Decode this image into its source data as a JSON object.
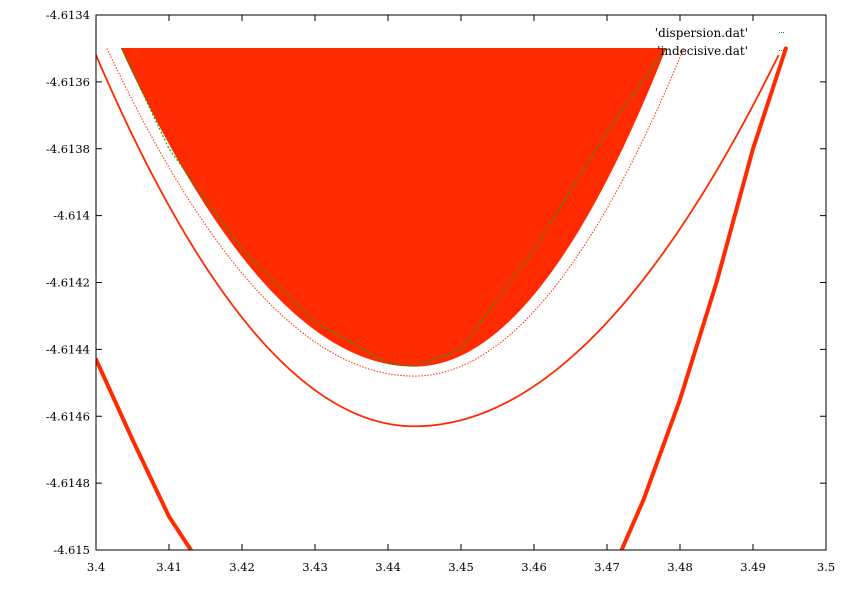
{
  "chart_data": {
    "type": "scatter",
    "title": "",
    "xlabel": "",
    "ylabel": "",
    "xlim": [
      3.4,
      3.5
    ],
    "ylim": [
      -4.615,
      -4.6134
    ],
    "x_ticks": [
      "3.4",
      "3.41",
      "3.42",
      "3.43",
      "3.44",
      "3.45",
      "3.46",
      "3.47",
      "3.48",
      "3.49",
      "3.5"
    ],
    "y_ticks": [
      "-4.6134",
      "-4.6136",
      "-4.6138",
      "-4.614",
      "-4.6142",
      "-4.6144",
      "-4.6146",
      "-4.6148",
      "-4.615"
    ],
    "legend_position": "top-right",
    "grid": false,
    "series": [
      {
        "name": "'dispersion.dat'",
        "color": "#00aa00",
        "style": "dots",
        "description_points": [
          [
            3.4035,
            -4.6135
          ],
          [
            3.41,
            -4.6138
          ],
          [
            3.42,
            -4.6141
          ],
          [
            3.43,
            -4.61432
          ],
          [
            3.44,
            -4.61444
          ],
          [
            3.4436,
            -4.61445
          ],
          [
            3.45,
            -4.6144
          ],
          [
            3.46,
            -4.6141
          ],
          [
            3.47,
            -4.61375
          ],
          [
            3.478,
            -4.6135
          ]
        ]
      },
      {
        "name": "'indecisive.dat'",
        "color": "#ff2a00",
        "style": "dots",
        "bands": [
          {
            "id": "filled-region",
            "x_left": 3.4035,
            "x_right": 3.478,
            "y_top": -4.6135,
            "vertex": [
              3.4436,
              -4.61445
            ]
          },
          {
            "id": "inner-curve",
            "x_left": 3.4015,
            "x_right": 3.4805,
            "y_top": -4.6135,
            "vertex": [
              3.4436,
              -4.61448
            ]
          },
          {
            "id": "outer-curve",
            "x_left": 3.4,
            "x_right": 3.4935,
            "y_top": -4.61352,
            "vertex": [
              3.4436,
              -4.61463
            ]
          },
          {
            "id": "left-branch",
            "points": [
              [
                3.4,
                -4.61443
              ],
              [
                3.405,
                -4.61467
              ],
              [
                3.41,
                -4.6149
              ],
              [
                3.413,
                -4.615
              ]
            ]
          },
          {
            "id": "right-branch",
            "points": [
              [
                3.472,
                -4.615
              ],
              [
                3.475,
                -4.61485
              ],
              [
                3.48,
                -4.61455
              ],
              [
                3.485,
                -4.6142
              ],
              [
                3.49,
                -4.6138
              ],
              [
                3.4945,
                -4.6135
              ]
            ]
          }
        ]
      }
    ]
  }
}
